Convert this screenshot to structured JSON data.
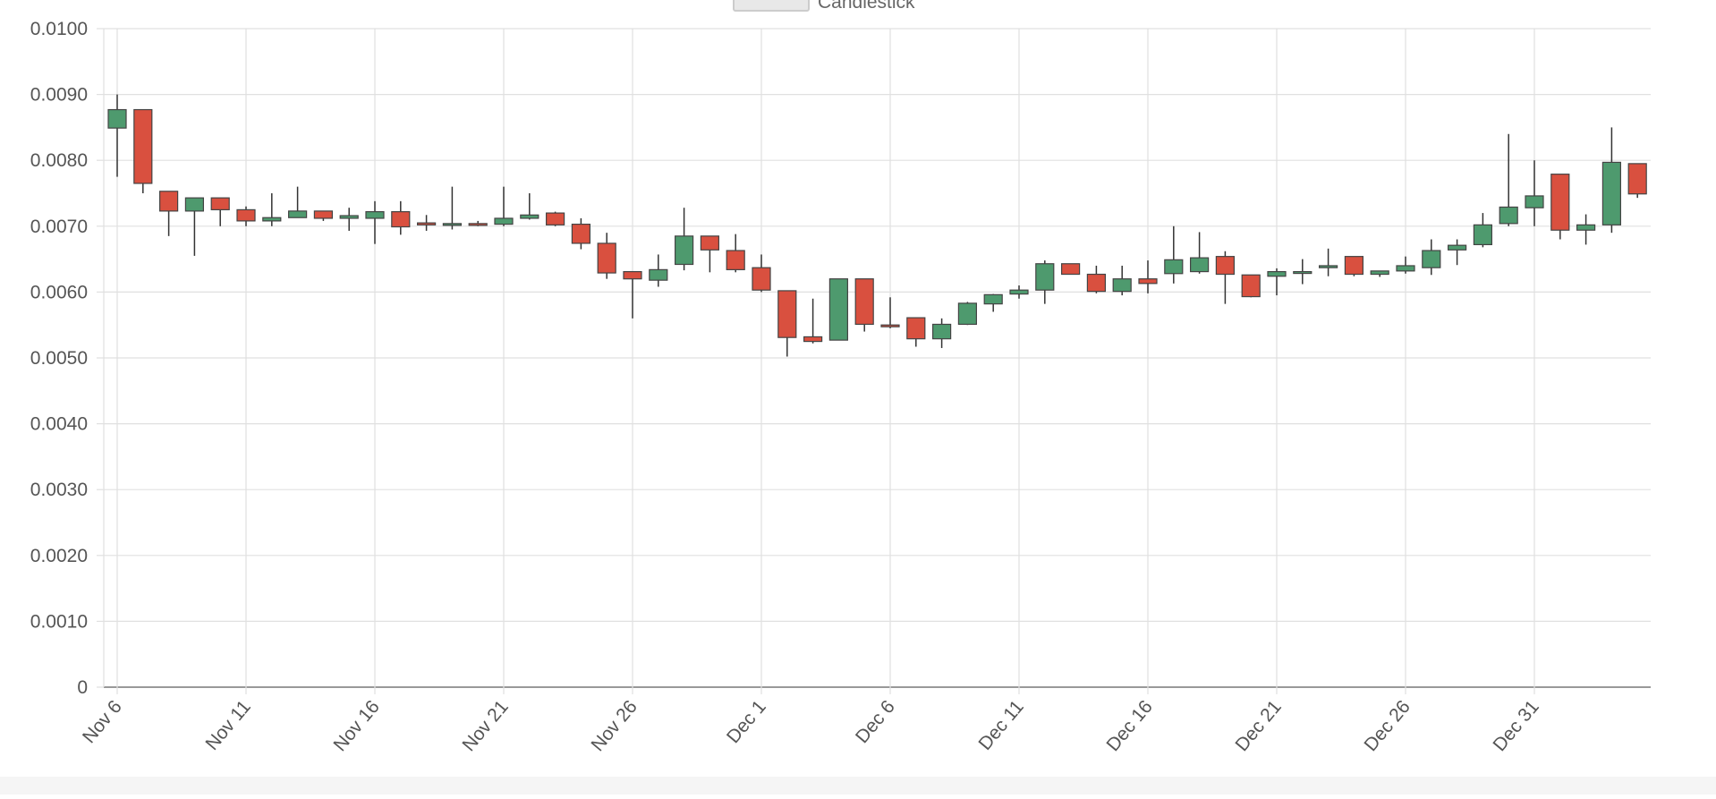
{
  "legend": {
    "label": "Candlestick",
    "position": "top-center",
    "swatch_color": "#e8e8e8"
  },
  "chart_data": {
    "type": "candlestick",
    "title": "",
    "xlabel": "",
    "ylabel": "",
    "ylim": [
      0,
      0.01
    ],
    "y_ticks": [
      "0",
      "0.0010",
      "0.0020",
      "0.0030",
      "0.0040",
      "0.0050",
      "0.0060",
      "0.0070",
      "0.0080",
      "0.0090",
      "0.0100"
    ],
    "x_tick_labels": [
      "Nov 6",
      "Nov 11",
      "Nov 16",
      "Nov 21",
      "Nov 26",
      "Dec 1",
      "Dec 6",
      "Dec 11",
      "Dec 16",
      "Dec 21",
      "Dec 26",
      "Dec 31"
    ],
    "x_tick_dates": [
      "Nov 6",
      "Nov 11",
      "Nov 16",
      "Nov 21",
      "Nov 26",
      "Dec 1",
      "Dec 6",
      "Dec 11",
      "Dec 16",
      "Dec 21",
      "Dec 26",
      "Dec 31"
    ],
    "grid": true,
    "colors": {
      "up": "#4e9a6e",
      "down": "#d9503f",
      "wick": "#333333",
      "grid": "#e0e0e0",
      "axis": "#999999",
      "text": "#555555"
    },
    "dates": [
      "Nov 6",
      "Nov 7",
      "Nov 8",
      "Nov 9",
      "Nov 10",
      "Nov 11",
      "Nov 12",
      "Nov 13",
      "Nov 14",
      "Nov 15",
      "Nov 16",
      "Nov 17",
      "Nov 18",
      "Nov 19",
      "Nov 20",
      "Nov 21",
      "Nov 22",
      "Nov 23",
      "Nov 24",
      "Nov 25",
      "Nov 26",
      "Nov 27",
      "Nov 28",
      "Nov 29",
      "Nov 30",
      "Dec 1",
      "Dec 2",
      "Dec 3",
      "Dec 4",
      "Dec 5",
      "Dec 6",
      "Dec 7",
      "Dec 8",
      "Dec 9",
      "Dec 10",
      "Dec 11",
      "Dec 12",
      "Dec 13",
      "Dec 14",
      "Dec 15",
      "Dec 16",
      "Dec 17",
      "Dec 18",
      "Dec 19",
      "Dec 20",
      "Dec 21",
      "Dec 22",
      "Dec 23",
      "Dec 24",
      "Dec 25",
      "Dec 26",
      "Dec 27",
      "Dec 28",
      "Dec 29",
      "Dec 30",
      "Dec 31",
      "Jan 1",
      "Jan 2",
      "Jan 3",
      "Jan 4"
    ],
    "open": [
      0.00849,
      0.00877,
      0.00753,
      0.00723,
      0.00743,
      0.00725,
      0.00708,
      0.00713,
      0.00723,
      0.00712,
      0.00712,
      0.00722,
      0.00705,
      0.00702,
      0.00704,
      0.00703,
      0.00712,
      0.0072,
      0.00703,
      0.00674,
      0.00631,
      0.00618,
      0.00642,
      0.00685,
      0.00663,
      0.00637,
      0.00602,
      0.00532,
      0.00527,
      0.0062,
      0.0055,
      0.00561,
      0.00529,
      0.00551,
      0.00582,
      0.00597,
      0.00603,
      0.00643,
      0.00627,
      0.00601,
      0.0062,
      0.00628,
      0.00631,
      0.00654,
      0.00626,
      0.00624,
      0.00631,
      0.00637,
      0.00654,
      0.00627,
      0.00632,
      0.00637,
      0.00664,
      0.00672,
      0.00704,
      0.00728,
      0.00779,
      0.00694,
      0.00702,
      0.00795
    ],
    "close": [
      0.00877,
      0.00765,
      0.00723,
      0.00743,
      0.00725,
      0.00708,
      0.00713,
      0.00723,
      0.00712,
      0.00716,
      0.00722,
      0.00699,
      0.00702,
      0.00704,
      0.00703,
      0.00712,
      0.00717,
      0.00702,
      0.00674,
      0.00629,
      0.0062,
      0.00634,
      0.00685,
      0.00664,
      0.00634,
      0.00603,
      0.00531,
      0.00525,
      0.0062,
      0.00551,
      0.00549,
      0.00529,
      0.00551,
      0.00583,
      0.00596,
      0.00603,
      0.00643,
      0.00627,
      0.00601,
      0.0062,
      0.00613,
      0.00649,
      0.00652,
      0.00627,
      0.00593,
      0.00631,
      0.00631,
      0.0064,
      0.00627,
      0.00632,
      0.0064,
      0.00663,
      0.00671,
      0.00702,
      0.00729,
      0.00746,
      0.00694,
      0.00702,
      0.00797,
      0.00749
    ],
    "high": [
      0.009,
      0.00877,
      0.00753,
      0.00743,
      0.00743,
      0.0073,
      0.0075,
      0.0076,
      0.00723,
      0.00728,
      0.00738,
      0.00738,
      0.00717,
      0.0076,
      0.00708,
      0.0076,
      0.0075,
      0.00722,
      0.00712,
      0.0069,
      0.00631,
      0.00657,
      0.00728,
      0.00685,
      0.00688,
      0.00657,
      0.00602,
      0.0059,
      0.0062,
      0.0062,
      0.00592,
      0.00561,
      0.0056,
      0.00585,
      0.00597,
      0.0061,
      0.00648,
      0.00643,
      0.0064,
      0.0064,
      0.00648,
      0.007,
      0.00691,
      0.00662,
      0.00626,
      0.00636,
      0.0065,
      0.00666,
      0.00654,
      0.00632,
      0.00654,
      0.0068,
      0.0068,
      0.0072,
      0.0084,
      0.008,
      0.00779,
      0.00718,
      0.0085,
      0.00795
    ],
    "low": [
      0.00775,
      0.0075,
      0.00685,
      0.00655,
      0.007,
      0.007,
      0.007,
      0.00713,
      0.00708,
      0.00693,
      0.00673,
      0.00687,
      0.00693,
      0.00695,
      0.007,
      0.007,
      0.0071,
      0.007,
      0.00665,
      0.0062,
      0.0056,
      0.00608,
      0.00633,
      0.0063,
      0.0063,
      0.006,
      0.00502,
      0.00522,
      0.00527,
      0.0054,
      0.00545,
      0.00517,
      0.00515,
      0.0055,
      0.0057,
      0.0059,
      0.00582,
      0.00627,
      0.00598,
      0.00595,
      0.00598,
      0.00613,
      0.00628,
      0.00582,
      0.00592,
      0.00595,
      0.00612,
      0.00624,
      0.00624,
      0.00623,
      0.00628,
      0.00626,
      0.00641,
      0.00668,
      0.007,
      0.007,
      0.0068,
      0.00672,
      0.0069,
      0.00743
    ]
  }
}
